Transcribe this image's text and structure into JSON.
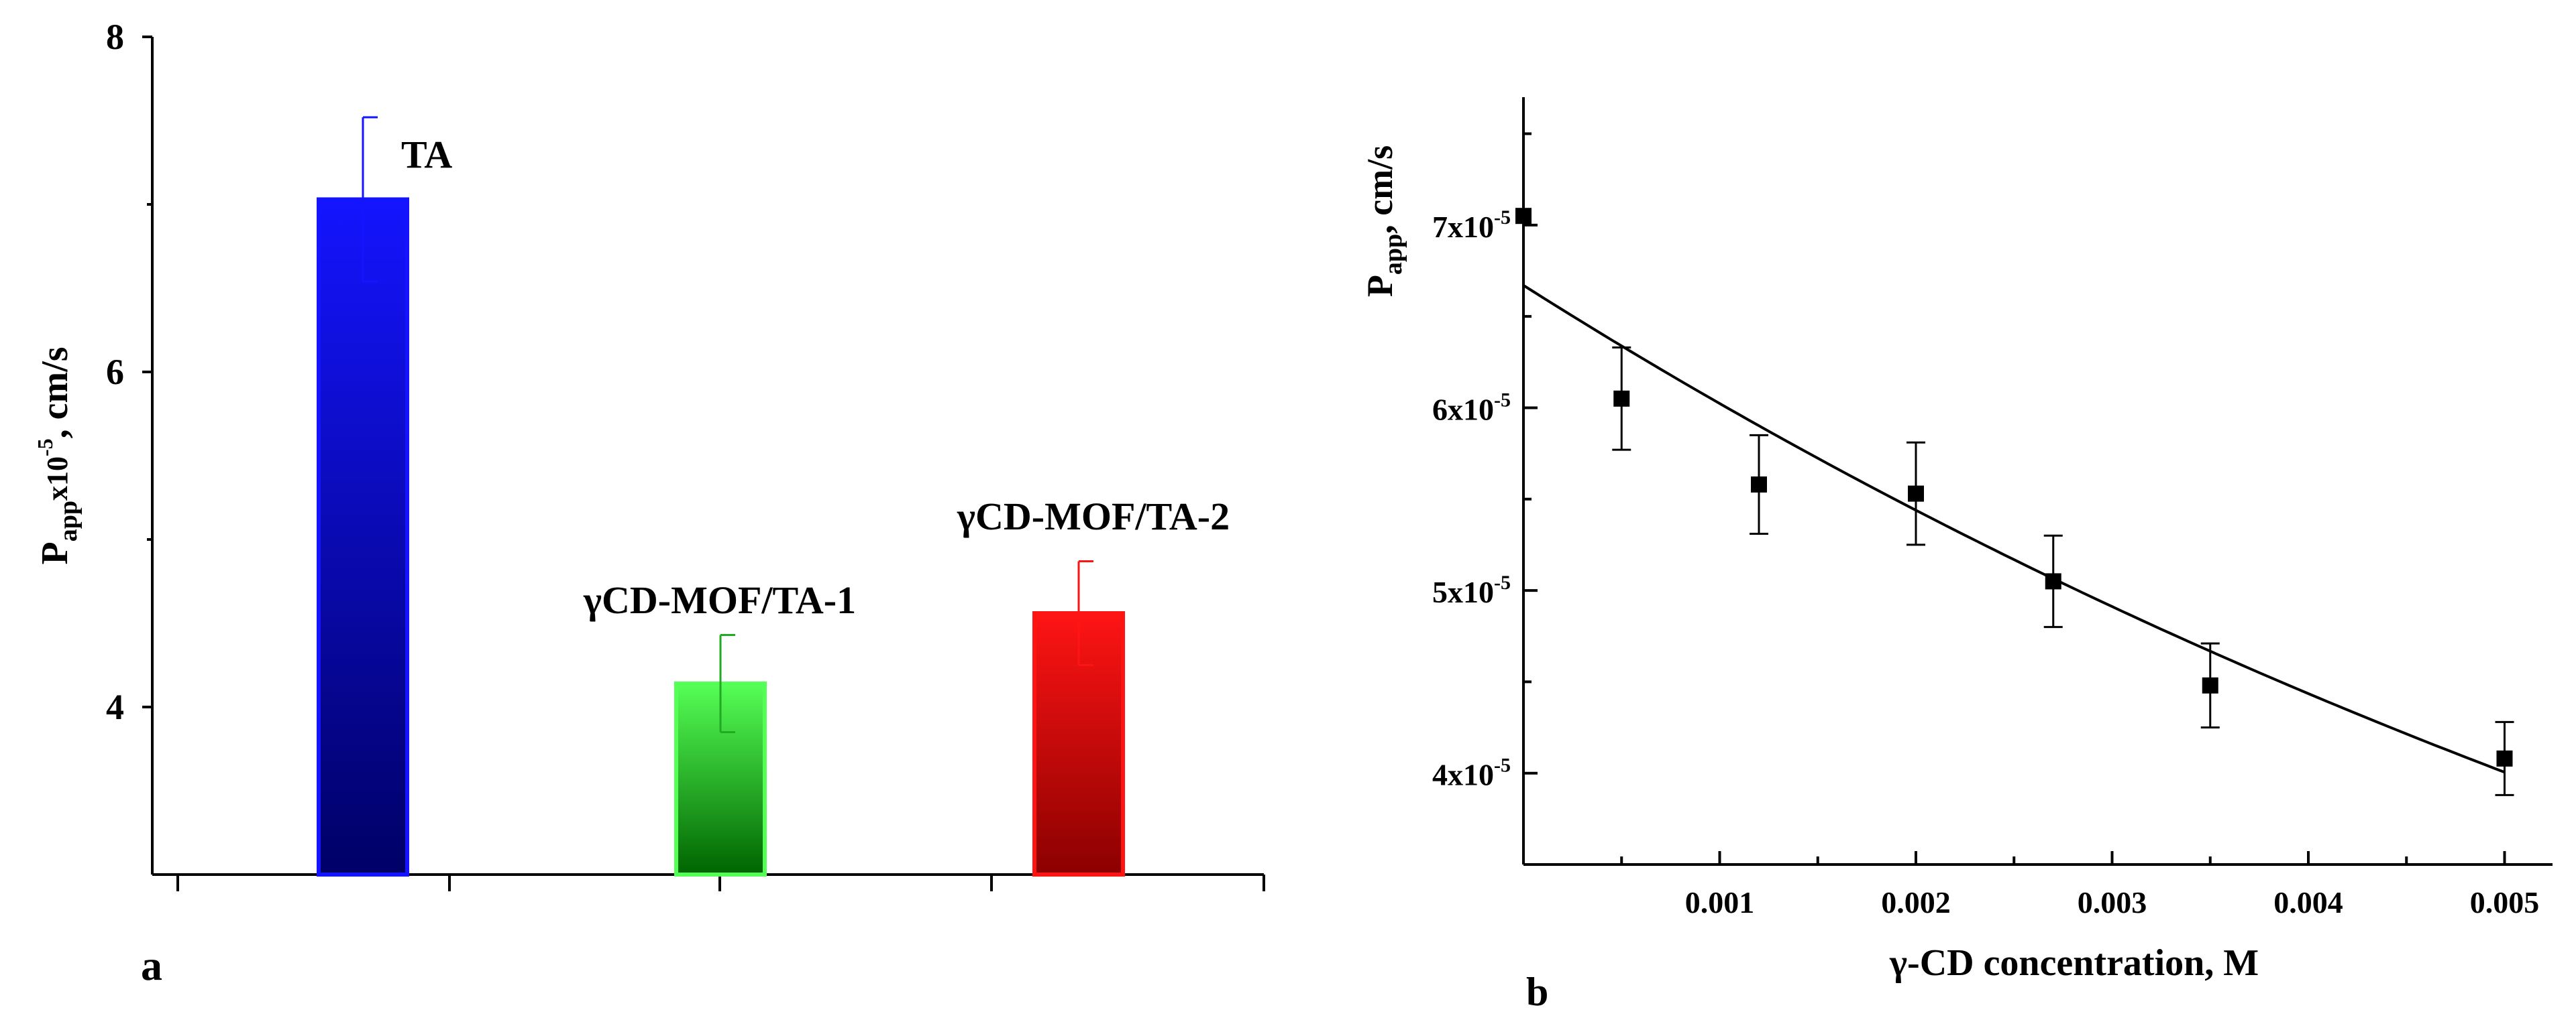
{
  "chart_data": [
    {
      "panel_label": "a",
      "type": "bar",
      "ylabel": {
        "main": "P",
        "sub": "app",
        "mid": "x10",
        "sup": "-5",
        "tail": ", cm/s"
      },
      "ylim": [
        3,
        8
      ],
      "yticks": [
        4,
        6,
        8
      ],
      "ytick_labels": [
        "4",
        "6",
        "8"
      ],
      "bars": [
        {
          "label": "TA",
          "value": 7.03,
          "err": 0.49,
          "color_top": "#1414ff",
          "color_bottom": "#000066",
          "err_color": "#1414ff"
        },
        {
          "label": "γCD-MOF/TA-1",
          "value": 4.14,
          "err": 0.29,
          "color_top": "#55ff55",
          "color_bottom": "#006400",
          "err_color": "#22aa22"
        },
        {
          "label": "γCD-MOF/TA-2",
          "value": 4.56,
          "err": 0.31,
          "color_top": "#ff1414",
          "color_bottom": "#8b0000",
          "err_color": "#ff1414"
        }
      ]
    },
    {
      "panel_label": "b",
      "type": "scatter",
      "xlabel": "γ-CD concentration, M",
      "ylabel": {
        "main": "P",
        "sub": "app",
        "tail": ", cm/s"
      },
      "xlim": [
        0,
        0.0052
      ],
      "ylim": [
        3.5,
        7.7
      ],
      "xticks": [
        0.001,
        0.002,
        0.003,
        0.004,
        0.005
      ],
      "xtick_labels": [
        "0.001",
        "0.002",
        "0.003",
        "0.004",
        "0.005"
      ],
      "yticks": [
        4,
        5,
        6,
        7
      ],
      "ytick_labels": [
        {
          "base": "4x10",
          "exp": "-5"
        },
        {
          "base": "5x10",
          "exp": "-5"
        },
        {
          "base": "6x10",
          "exp": "-5"
        },
        {
          "base": "7x10",
          "exp": "-5"
        }
      ],
      "points": [
        {
          "x": 0.0,
          "y": 7.05,
          "err": 0
        },
        {
          "x": 0.0005,
          "y": 6.05,
          "err": 0.28
        },
        {
          "x": 0.0012,
          "y": 5.58,
          "err": 0.27
        },
        {
          "x": 0.002,
          "y": 5.53,
          "err": 0.28
        },
        {
          "x": 0.0027,
          "y": 5.05,
          "err": 0.25
        },
        {
          "x": 0.0035,
          "y": 4.48,
          "err": 0.23
        },
        {
          "x": 0.005,
          "y": 4.08,
          "err": 0.2
        }
      ],
      "fit": {
        "a": 6.67,
        "b": 0.102,
        "note": "exponential decay fit y = a*exp(-b*x*1000)"
      }
    }
  ]
}
